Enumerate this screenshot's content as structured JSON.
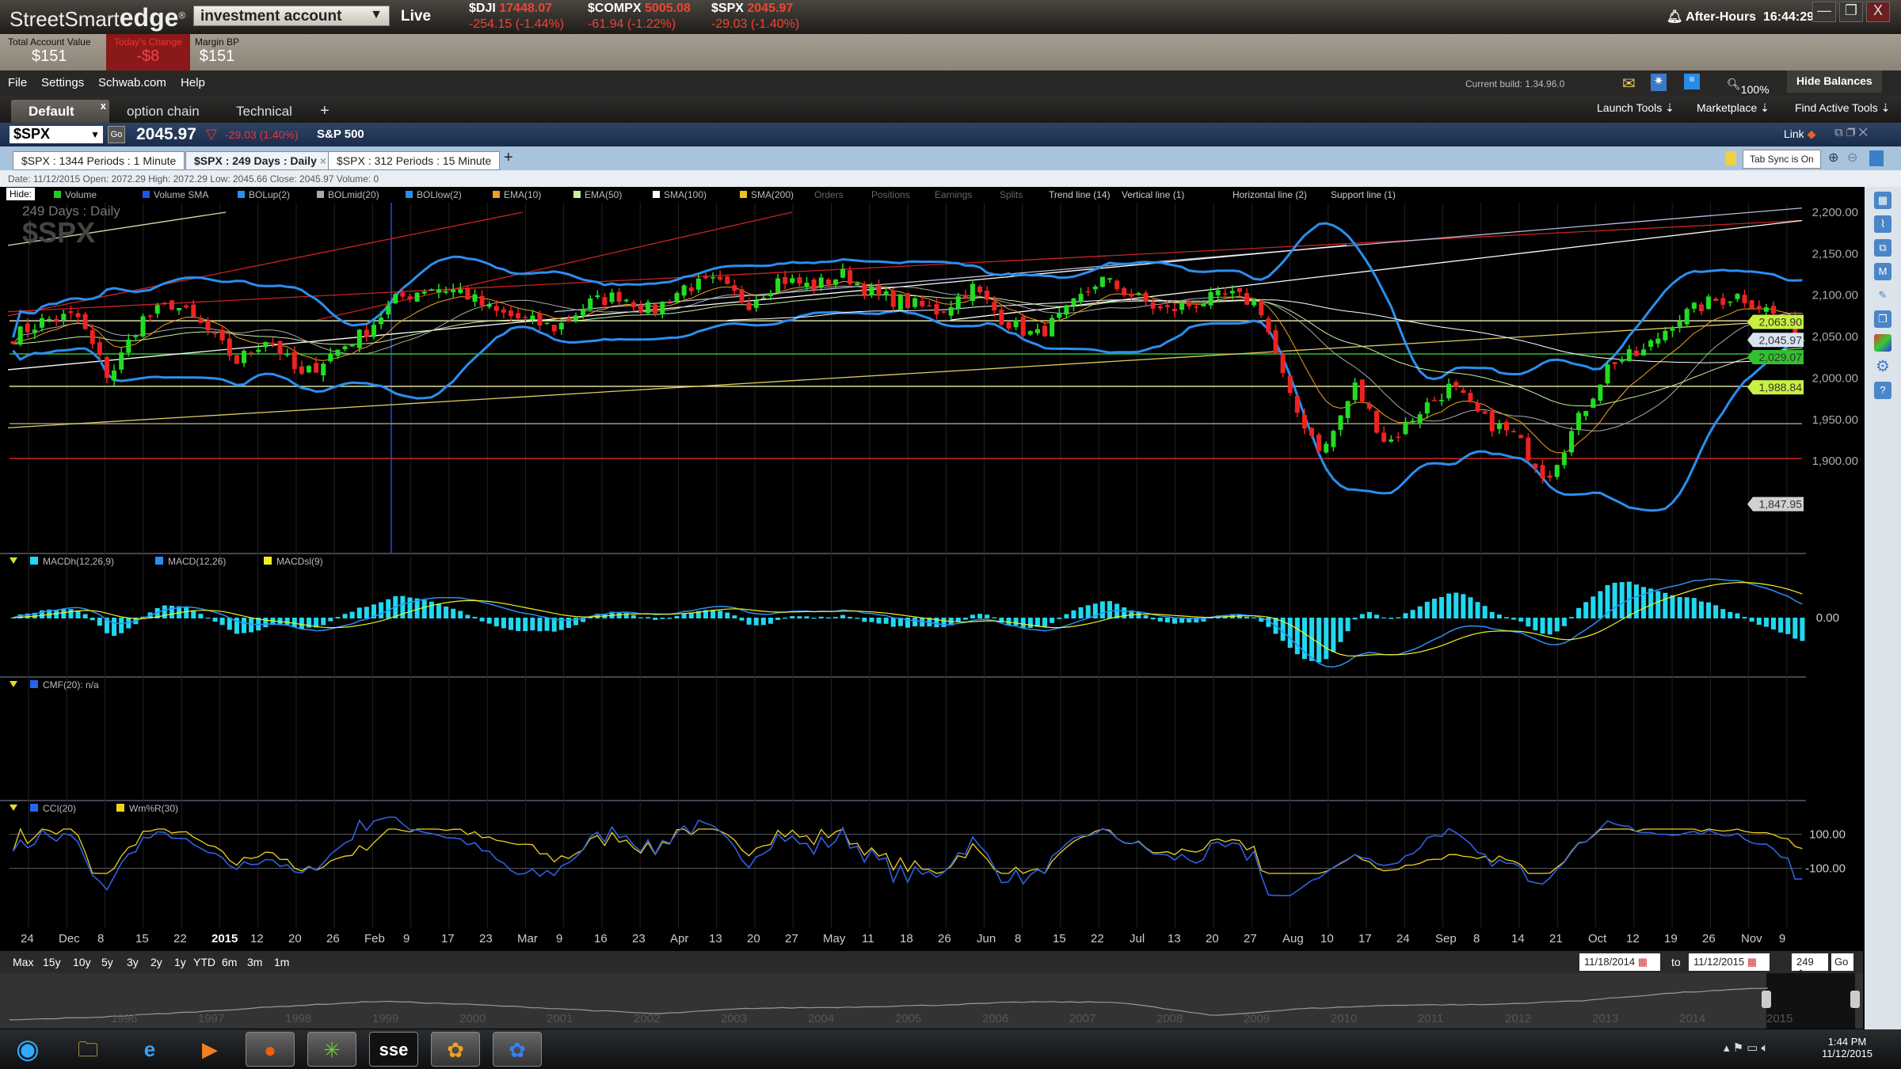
{
  "titlebar": {
    "logo_plain": "StreetSmart",
    "logo_bold": "edge",
    "logo_mark": "®",
    "account": "investment account",
    "live": "Live",
    "quotes": [
      {
        "sym": "$DJI",
        "val": "17448.07",
        "chg": "-254.15 (-1.44%)"
      },
      {
        "sym": "$COMPX",
        "val": "5005.08",
        "chg": "-61.94 (-1.22%)"
      },
      {
        "sym": "$SPX",
        "val": "2045.97",
        "chg": "-29.03 (-1.40%)"
      }
    ],
    "session": "After-Hours",
    "clock": "16:44:29",
    "min": "—",
    "max": "❐",
    "close": "X"
  },
  "balances": [
    {
      "label": "Total Account Value",
      "value": "$151"
    },
    {
      "label": "Today's Change",
      "value": "-$8"
    },
    {
      "label": "Margin BP",
      "value": "$151"
    }
  ],
  "menu": {
    "items": [
      "File",
      "Settings",
      "Schwab.com",
      "Help"
    ],
    "build": "Current build: 1.34.96.0",
    "zoom": "100%",
    "hide_balances": "Hide Balances"
  },
  "tabs": {
    "items": [
      "Default",
      "option chain",
      "Technical"
    ],
    "add": "+",
    "close": "x",
    "tools": [
      "Launch Tools",
      "Marketplace",
      "Find Active Tools"
    ]
  },
  "symbol": {
    "value": "$SPX",
    "go": "Go",
    "last": "2045.97",
    "change": "-29.03 (1.40%)",
    "name": "S&P 500",
    "link": "Link"
  },
  "chart_tabs": {
    "items": [
      "$SPX : 1344  Periods : 1 Minute",
      "$SPX : 249  Days : Daily",
      "$SPX : 312  Periods : 15 Minute"
    ],
    "add": "+",
    "tab_sync": "Tab Sync is On"
  },
  "info_line": "Date: 11/12/2015  Open: 2072.29  High: 2072.29  Low: 2045.66  Close: 2045.97  Volume: 0",
  "legend": {
    "hide": "Hide:",
    "items": [
      {
        "label": "Volume",
        "color": "#22cc22"
      },
      {
        "label": "Volume SMA",
        "color": "#2255ee"
      },
      {
        "label": "BOLup(2)",
        "color": "#2a8ff0"
      },
      {
        "label": "BOLmid(20)",
        "color": "#aaaaaa"
      },
      {
        "label": "BOLlow(2)",
        "color": "#2a8ff0"
      },
      {
        "label": "EMA(10)",
        "color": "#f0a020"
      },
      {
        "label": "EMA(50)",
        "color": "#c8f0a0"
      },
      {
        "label": "SMA(100)",
        "color": "#ffffff"
      },
      {
        "label": "SMA(200)",
        "color": "#f0c020"
      },
      {
        "label": "Orders",
        "color": ""
      },
      {
        "label": "Positions",
        "color": ""
      },
      {
        "label": "Earnings",
        "color": ""
      },
      {
        "label": "Splits",
        "color": ""
      },
      {
        "label": "Trend line (14)",
        "color": ""
      },
      {
        "label": "Vertical line (1)",
        "color": ""
      },
      {
        "label": "Horizontal line (2)",
        "color": ""
      },
      {
        "label": "Support line (1)",
        "color": ""
      }
    ]
  },
  "chart_watermark": {
    "period": "249  Days : Daily",
    "symbol": "$SPX"
  },
  "chart_data": {
    "type": "candlestick",
    "days": 249,
    "ylim": [
      1790,
      2211
    ],
    "weekly_closes": [
      2050,
      2070,
      2075,
      2000,
      2070,
      2090,
      2060,
      2020,
      2050,
      2000,
      2030,
      2055,
      2095,
      2110,
      2105,
      2080,
      2070,
      2060,
      2090,
      2100,
      2080,
      2110,
      2115,
      2090,
      2120,
      2110,
      2125,
      2100,
      2090,
      2080,
      2110,
      2070,
      2050,
      2080,
      2120,
      2100,
      2080,
      2090,
      2100,
      2090,
      1970,
      1910,
      1990,
      1920,
      1960,
      1990,
      1950,
      1930,
      1880,
      1950,
      2020,
      2030,
      2070,
      2090,
      2100,
      2080,
      2045.97
    ],
    "y_ticks": [
      "2,200.00",
      "2,150.00",
      "2,100.00",
      "2,050.00",
      "2,000.00",
      "1,950.00",
      "1,900.00"
    ],
    "price_labels": [
      {
        "value": "2,063.90",
        "color": "#c8f040"
      },
      {
        "value": "2,045.97",
        "color": "#d8e4f0"
      },
      {
        "value": "2,029.07",
        "color": "#30c030"
      },
      {
        "value": "1,988.84",
        "color": "#c8f040"
      },
      {
        "value": "1,847.95",
        "color": "#d0d0d0"
      }
    ],
    "x_ticks": [
      "24",
      "Dec",
      "8",
      "15",
      "22",
      "2015",
      "12",
      "20",
      "26",
      "Feb",
      "9",
      "17",
      "23",
      "Mar",
      "9",
      "16",
      "23",
      "Apr",
      "13",
      "20",
      "27",
      "May",
      "11",
      "18",
      "26",
      "Jun",
      "8",
      "15",
      "22",
      "Jul",
      "13",
      "20",
      "27",
      "Aug",
      "10",
      "17",
      "24",
      "Sep",
      "8",
      "14",
      "21",
      "Oct",
      "12",
      "19",
      "26",
      "Nov",
      "9"
    ]
  },
  "macd": {
    "legend": [
      {
        "label": "MACDh(12,26,9)",
        "color": "#20d8f0"
      },
      {
        "label": "MACD(12,26)",
        "color": "#2a8ff0"
      },
      {
        "label": "MACDsl(9)",
        "color": "#f0f020"
      }
    ],
    "zero": "0.00"
  },
  "cmf": {
    "legend": [
      {
        "label": "CMF(20): n/a",
        "color": "#2266ee"
      }
    ]
  },
  "cci": {
    "legend": [
      {
        "label": "CCI(20)",
        "color": "#2266ee"
      },
      {
        "label": "Wm%R(30)",
        "color": "#f0d020"
      }
    ],
    "ticks": [
      "100.00",
      "-100.00"
    ]
  },
  "range": {
    "buttons": [
      "Max",
      "15y",
      "10y",
      "5y",
      "3y",
      "2y",
      "1y",
      "YTD",
      "6m",
      "3m",
      "1m"
    ],
    "from": "11/18/2014",
    "to_label": "to",
    "to": "11/12/2015",
    "count": "249",
    "go": "Go"
  },
  "navigator": {
    "years": [
      "1996",
      "1997",
      "1998",
      "1999",
      "2000",
      "2001",
      "2002",
      "2003",
      "2004",
      "2005",
      "2006",
      "2007",
      "2008",
      "2009",
      "2010",
      "2011",
      "2012",
      "2013",
      "2014",
      "2015"
    ],
    "yearly_values": [
      600,
      740,
      970,
      1230,
      1450,
      1300,
      1100,
      880,
      1130,
      1180,
      1270,
      1420,
      1400,
      800,
      1120,
      1280,
      1300,
      1480,
      1830,
      2050
    ]
  },
  "taskbar": {
    "apps": [
      "start-orb",
      "file-explorer",
      "internet-explorer",
      "media-player",
      "firefox",
      "app-green",
      "sse",
      "app-orange",
      "app-blue"
    ],
    "sse": "sse",
    "time": "1:44 PM",
    "date": "11/12/2015"
  }
}
